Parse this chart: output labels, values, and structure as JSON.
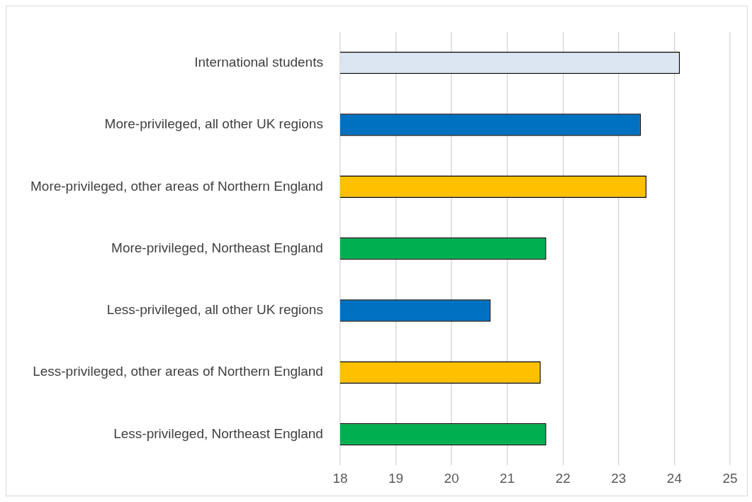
{
  "chart_data": {
    "type": "bar",
    "orientation": "horizontal",
    "categories": [
      "International students",
      "More-privileged, all other UK regions",
      "More-privileged, other areas of Northern England",
      "More-privileged, Northeast England",
      "Less-privileged, all other UK regions",
      "Less-privileged, other areas of Northern England",
      "Less-privileged, Northeast England"
    ],
    "values": [
      24.1,
      23.4,
      23.5,
      21.7,
      20.7,
      21.6,
      21.7
    ],
    "colors": [
      "#dce6f2",
      "#0070c0",
      "#ffc000",
      "#00b050",
      "#0070c0",
      "#ffc000",
      "#00b050"
    ],
    "xlim": [
      18,
      25
    ],
    "xticks": [
      18,
      19,
      20,
      21,
      22,
      23,
      24,
      25
    ],
    "grid": "x"
  }
}
